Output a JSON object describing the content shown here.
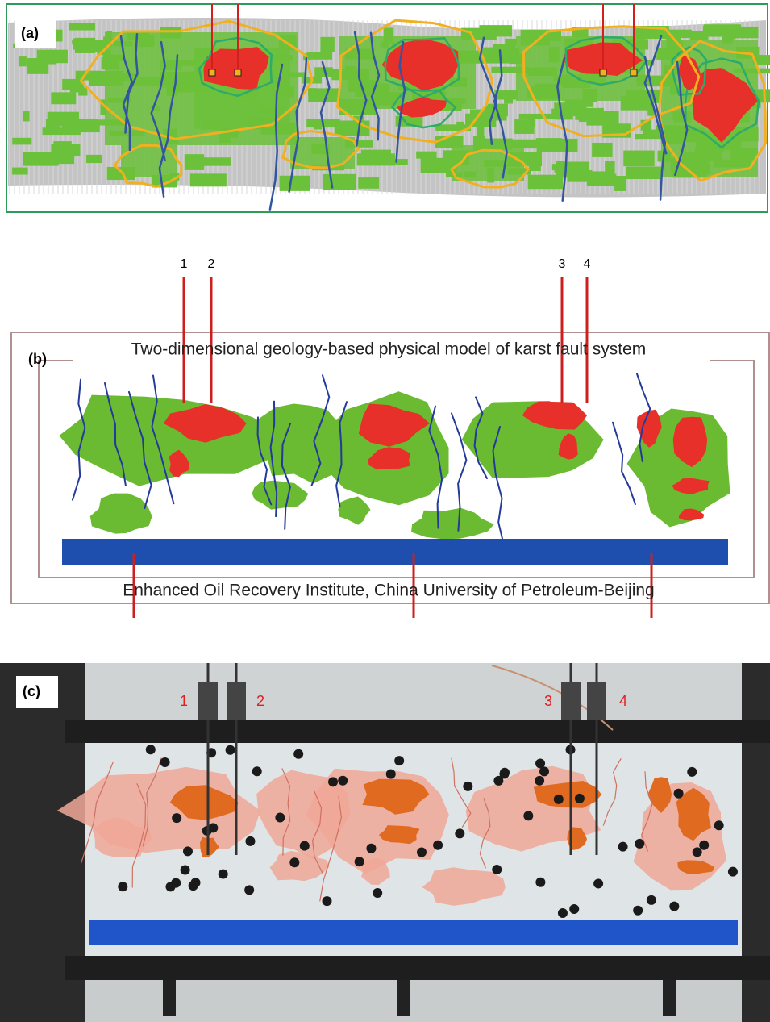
{
  "panels": [
    {
      "label": "(a)"
    },
    {
      "label": "(b)",
      "title": "Two-dimensional geology-based physical model of karst fault system",
      "footer": "Enhanced Oil Recovery Institute, China University of Petroleum-Beijing",
      "wells": [
        "1",
        "2",
        "3",
        "4"
      ]
    },
    {
      "label": "(c)",
      "wells": [
        "1",
        "2",
        "3",
        "4"
      ]
    }
  ]
}
